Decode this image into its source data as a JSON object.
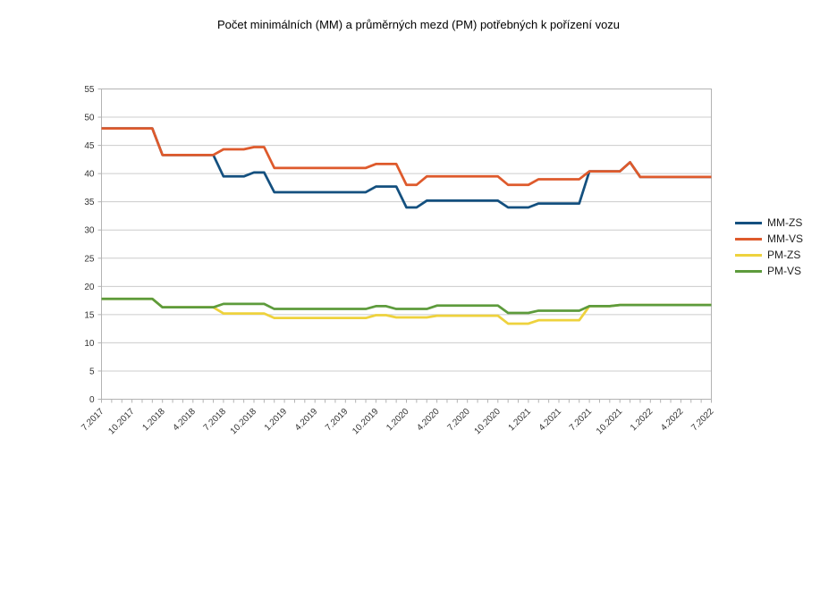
{
  "chart_data": {
    "type": "line",
    "title": "Počet minimálních (MM) a průměrných mezd (PM) potřebných k pořízení vozu",
    "xlabel": "",
    "ylabel": "",
    "ylim": [
      0,
      55
    ],
    "y_ticks": [
      0,
      5,
      10,
      15,
      20,
      25,
      30,
      35,
      40,
      45,
      50,
      55
    ],
    "grid": "horizontal",
    "legend_position": "right",
    "x_unit": "month",
    "points_per_series": 61,
    "x_label_every_n_points": 3,
    "x_tick_labels": [
      "7.2017",
      "10.2017",
      "1.2018",
      "4.2018",
      "7.2018",
      "10.2018",
      "1.2019",
      "4.2019",
      "7.2019",
      "10.2019",
      "1.2020",
      "4.2020",
      "7.2020",
      "10.2020",
      "1.2021",
      "4.2021",
      "7.2021",
      "10.2021",
      "1.2022",
      "4.2022",
      "7.2022"
    ],
    "series": [
      {
        "name": "MM-ZS",
        "color": "#14507f",
        "values": [
          48,
          48,
          48,
          48,
          48,
          48,
          43.3,
          43.3,
          43.3,
          43.3,
          43.3,
          43.3,
          39.5,
          39.5,
          39.5,
          40.2,
          40.2,
          36.7,
          36.7,
          36.7,
          36.7,
          36.7,
          36.7,
          36.7,
          36.7,
          36.7,
          36.7,
          37.7,
          37.7,
          37.7,
          34,
          34,
          35.2,
          35.2,
          35.2,
          35.2,
          35.2,
          35.2,
          35.2,
          35.2,
          34,
          34,
          34,
          34.7,
          34.7,
          34.7,
          34.7,
          34.7,
          40.4,
          40.4,
          40.4,
          40.4,
          42,
          39.4,
          39.4,
          39.4,
          39.4,
          39.4,
          39.4,
          39.4,
          39.4
        ]
      },
      {
        "name": "MM-VS",
        "color": "#de5a2c",
        "values": [
          48,
          48,
          48,
          48,
          48,
          48,
          43.3,
          43.3,
          43.3,
          43.3,
          43.3,
          43.3,
          44.3,
          44.3,
          44.3,
          44.7,
          44.7,
          41,
          41,
          41,
          41,
          41,
          41,
          41,
          41,
          41,
          41,
          41.7,
          41.7,
          41.7,
          38,
          38,
          39.5,
          39.5,
          39.5,
          39.5,
          39.5,
          39.5,
          39.5,
          39.5,
          38,
          38,
          38,
          39,
          39,
          39,
          39,
          39,
          40.4,
          40.4,
          40.4,
          40.4,
          42,
          39.4,
          39.4,
          39.4,
          39.4,
          39.4,
          39.4,
          39.4,
          39.4
        ]
      },
      {
        "name": "PM-ZS",
        "color": "#eed23d",
        "values": [
          17.8,
          17.8,
          17.8,
          17.8,
          17.8,
          17.8,
          16.3,
          16.3,
          16.3,
          16.3,
          16.3,
          16.3,
          15.2,
          15.2,
          15.2,
          15.2,
          15.2,
          14.4,
          14.4,
          14.4,
          14.4,
          14.4,
          14.4,
          14.4,
          14.4,
          14.4,
          14.4,
          14.9,
          14.9,
          14.5,
          14.5,
          14.5,
          14.5,
          14.8,
          14.8,
          14.8,
          14.8,
          14.8,
          14.8,
          14.8,
          13.4,
          13.4,
          13.4,
          14,
          14,
          14,
          14,
          14,
          16.5,
          16.5,
          16.5,
          16.7,
          16.7,
          16.7,
          16.7,
          16.7,
          16.7,
          16.7,
          16.7,
          16.7,
          16.7
        ]
      },
      {
        "name": "PM-VS",
        "color": "#5d9b3c",
        "values": [
          17.8,
          17.8,
          17.8,
          17.8,
          17.8,
          17.8,
          16.3,
          16.3,
          16.3,
          16.3,
          16.3,
          16.3,
          16.9,
          16.9,
          16.9,
          16.9,
          16.9,
          16,
          16,
          16,
          16,
          16,
          16,
          16,
          16,
          16,
          16,
          16.5,
          16.5,
          16,
          16,
          16,
          16,
          16.6,
          16.6,
          16.6,
          16.6,
          16.6,
          16.6,
          16.6,
          15.3,
          15.3,
          15.3,
          15.7,
          15.7,
          15.7,
          15.7,
          15.7,
          16.5,
          16.5,
          16.5,
          16.7,
          16.7,
          16.7,
          16.7,
          16.7,
          16.7,
          16.7,
          16.7,
          16.7,
          16.7
        ]
      }
    ],
    "style": {
      "axis_color": "#b3b3b3",
      "grid_color": "#cccccc",
      "tick_text_color": "#333333",
      "line_width": 2.75
    }
  }
}
